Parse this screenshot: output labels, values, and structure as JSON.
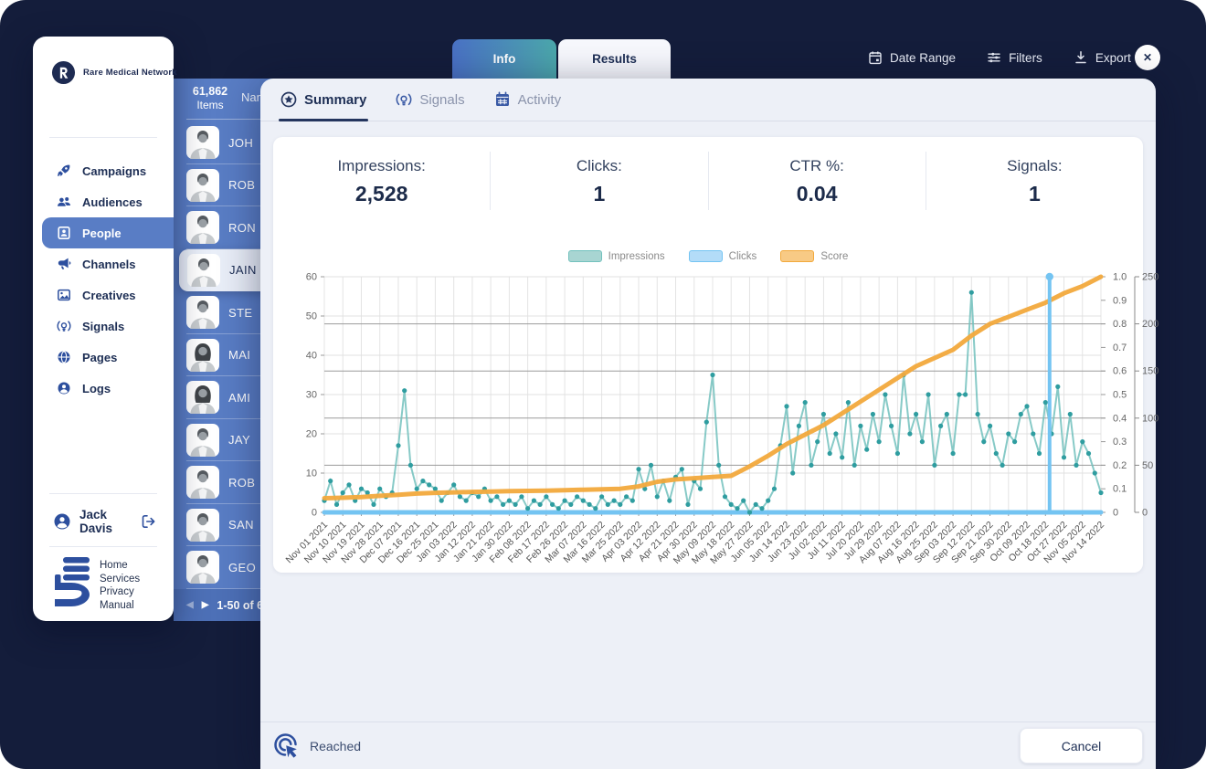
{
  "topbar": {
    "tabs": [
      {
        "label": "Info"
      },
      {
        "label": "Results"
      }
    ],
    "actions": [
      {
        "id": "date-range",
        "label": "Date Range",
        "icon": "calendar-icon"
      },
      {
        "id": "filters",
        "label": "Filters",
        "icon": "filters-icon"
      },
      {
        "id": "export",
        "label": "Export",
        "icon": "export-icon"
      }
    ],
    "close_label": "✕"
  },
  "sidebar": {
    "brand": "Rare Medical Network",
    "items": [
      {
        "label": "Campaigns",
        "icon": "rocket-icon",
        "active": false
      },
      {
        "label": "Audiences",
        "icon": "audiences-icon",
        "active": false
      },
      {
        "label": "People",
        "icon": "id-card-icon",
        "active": true
      },
      {
        "label": "Channels",
        "icon": "megaphone-icon",
        "active": false
      },
      {
        "label": "Creatives",
        "icon": "image-icon",
        "active": false
      },
      {
        "label": "Signals",
        "icon": "signal-bulb-icon",
        "active": false
      },
      {
        "label": "Pages",
        "icon": "globe-icon",
        "active": false
      },
      {
        "label": "Logs",
        "icon": "person-circle-icon",
        "active": false
      }
    ],
    "user": {
      "name": "Jack Davis"
    },
    "footer_links": [
      "Home",
      "Services",
      "Privacy",
      "Manual"
    ]
  },
  "people_list": {
    "items_count": "61,862",
    "items_label": "Items",
    "name_column": "Nam",
    "rows": [
      {
        "name": "JOH",
        "avatar": "male",
        "selected": false
      },
      {
        "name": "ROB",
        "avatar": "male",
        "selected": false
      },
      {
        "name": "RON",
        "avatar": "male",
        "selected": false
      },
      {
        "name": "JAIN",
        "avatar": "male",
        "selected": true
      },
      {
        "name": "STE",
        "avatar": "male",
        "selected": false
      },
      {
        "name": "MAI",
        "avatar": "female",
        "selected": false
      },
      {
        "name": "AMI",
        "avatar": "female",
        "selected": false
      },
      {
        "name": "JAY",
        "avatar": "male",
        "selected": false
      },
      {
        "name": "ROB",
        "avatar": "male",
        "selected": false
      },
      {
        "name": "SAN",
        "avatar": "male",
        "selected": false
      },
      {
        "name": "GEO",
        "avatar": "male",
        "selected": false
      }
    ],
    "pagination": "1-50 of 6"
  },
  "panel": {
    "tabs": [
      {
        "label": "Summary",
        "icon": "summary-star-icon",
        "active": true
      },
      {
        "label": "Signals",
        "icon": "signal-bulb-icon",
        "active": false
      },
      {
        "label": "Activity",
        "icon": "activity-calendar-icon",
        "active": false
      }
    ],
    "stats": [
      {
        "label": "Impressions:",
        "value": "2,528"
      },
      {
        "label": "Clicks:",
        "value": "1"
      },
      {
        "label": "CTR %:",
        "value": "0.04"
      },
      {
        "label": "Signals:",
        "value": "1"
      }
    ],
    "footer": {
      "status_label": "Reached",
      "cancel_label": "Cancel"
    }
  },
  "chart_data": {
    "type": "line",
    "title": "",
    "legend_position": "top-center",
    "grid": true,
    "total_days": 378,
    "tick_interval_days": 9,
    "x_tick_labels": [
      "Nov 01 2021",
      "Nov 10 2021",
      "Nov 19 2021",
      "Nov 28 2021",
      "Dec 07 2021",
      "Dec 16 2021",
      "Dec 25 2021",
      "Jan 03 2022",
      "Jan 12 2022",
      "Jan 21 2022",
      "Jan 30 2022",
      "Feb 08 2022",
      "Feb 17 2022",
      "Feb 26 2022",
      "Mar 07 2022",
      "Mar 16 2022",
      "Mar 25 2022",
      "Apr 03 2022",
      "Apr 12 2022",
      "Apr 21 2022",
      "Apr 30 2022",
      "May 09 2022",
      "May 18 2022",
      "May 27 2022",
      "Jun 05 2022",
      "Jun 14 2022",
      "Jun 23 2022",
      "Jul 02 2022",
      "Jul 11 2022",
      "Jul 20 2022",
      "Jul 29 2022",
      "Aug 07 2022",
      "Aug 16 2022",
      "Aug 25 2022",
      "Sep 03 2022",
      "Sep 12 2022",
      "Sep 21 2022",
      "Sep 30 2022",
      "Oct 09 2022",
      "Oct 18 2022",
      "Oct 27 2022",
      "Nov 05 2022",
      "Nov 14 2022"
    ],
    "left_axis": {
      "min": 0,
      "max": 60,
      "ticks": [
        0,
        10,
        20,
        30,
        40,
        50,
        60
      ]
    },
    "right_axis_1": {
      "min": 0,
      "max": 1,
      "ticks": [
        0,
        0.1,
        0.2,
        0.3,
        0.4,
        0.5,
        0.6,
        0.7,
        0.8,
        0.9,
        1.0
      ]
    },
    "right_axis_2": {
      "min": 0,
      "max": 250,
      "ticks": [
        0,
        50,
        100,
        150,
        200,
        250
      ]
    },
    "series": [
      {
        "name": "Impressions",
        "axis": "left",
        "step_days": 3,
        "color": "#72c1bd",
        "dot_color": "#2f9da0",
        "swatch_fill": "#a8d5d2",
        "values": [
          3,
          8,
          2,
          5,
          7,
          3,
          6,
          5,
          2,
          6,
          4,
          5,
          17,
          31,
          12,
          6,
          8,
          7,
          6,
          3,
          5,
          7,
          4,
          3,
          5,
          4,
          6,
          3,
          4,
          2,
          3,
          2,
          4,
          1,
          3,
          2,
          4,
          2,
          1,
          3,
          2,
          4,
          3,
          2,
          1,
          4,
          2,
          3,
          2,
          4,
          3,
          11,
          6,
          12,
          4,
          8,
          3,
          9,
          11,
          2,
          8,
          6,
          23,
          35,
          12,
          4,
          2,
          1,
          3,
          0,
          2,
          1,
          3,
          6,
          17,
          27,
          10,
          22,
          28,
          12,
          18,
          25,
          15,
          20,
          14,
          28,
          12,
          22,
          16,
          25,
          18,
          30,
          22,
          15,
          35,
          20,
          25,
          18,
          30,
          12,
          22,
          25,
          15,
          30,
          30,
          56,
          25,
          18,
          22,
          15,
          12,
          20,
          18,
          25,
          27,
          20,
          15,
          28,
          20,
          32,
          14,
          25,
          12,
          18,
          15,
          10,
          5
        ]
      },
      {
        "name": "Clicks",
        "axis": "right_0_1",
        "color": "#74c4f2",
        "swatch_fill": "#b3dcf8",
        "baseline_value": 0,
        "spike_day": 353,
        "spike_value": 1.0
      },
      {
        "name": "Score",
        "axis": "right_0_1",
        "step_days": 9,
        "color": "#f2a93c",
        "swatch_fill": "#f8ca85",
        "values": [
          0.06,
          0.062,
          0.065,
          0.07,
          0.075,
          0.08,
          0.083,
          0.085,
          0.087,
          0.088,
          0.09,
          0.091,
          0.092,
          0.094,
          0.096,
          0.098,
          0.1,
          0.11,
          0.13,
          0.14,
          0.145,
          0.15,
          0.155,
          0.195,
          0.24,
          0.29,
          0.33,
          0.37,
          0.42,
          0.47,
          0.52,
          0.57,
          0.62,
          0.655,
          0.69,
          0.75,
          0.8,
          0.83,
          0.86,
          0.89,
          0.93,
          0.96,
          1.0
        ]
      }
    ]
  }
}
